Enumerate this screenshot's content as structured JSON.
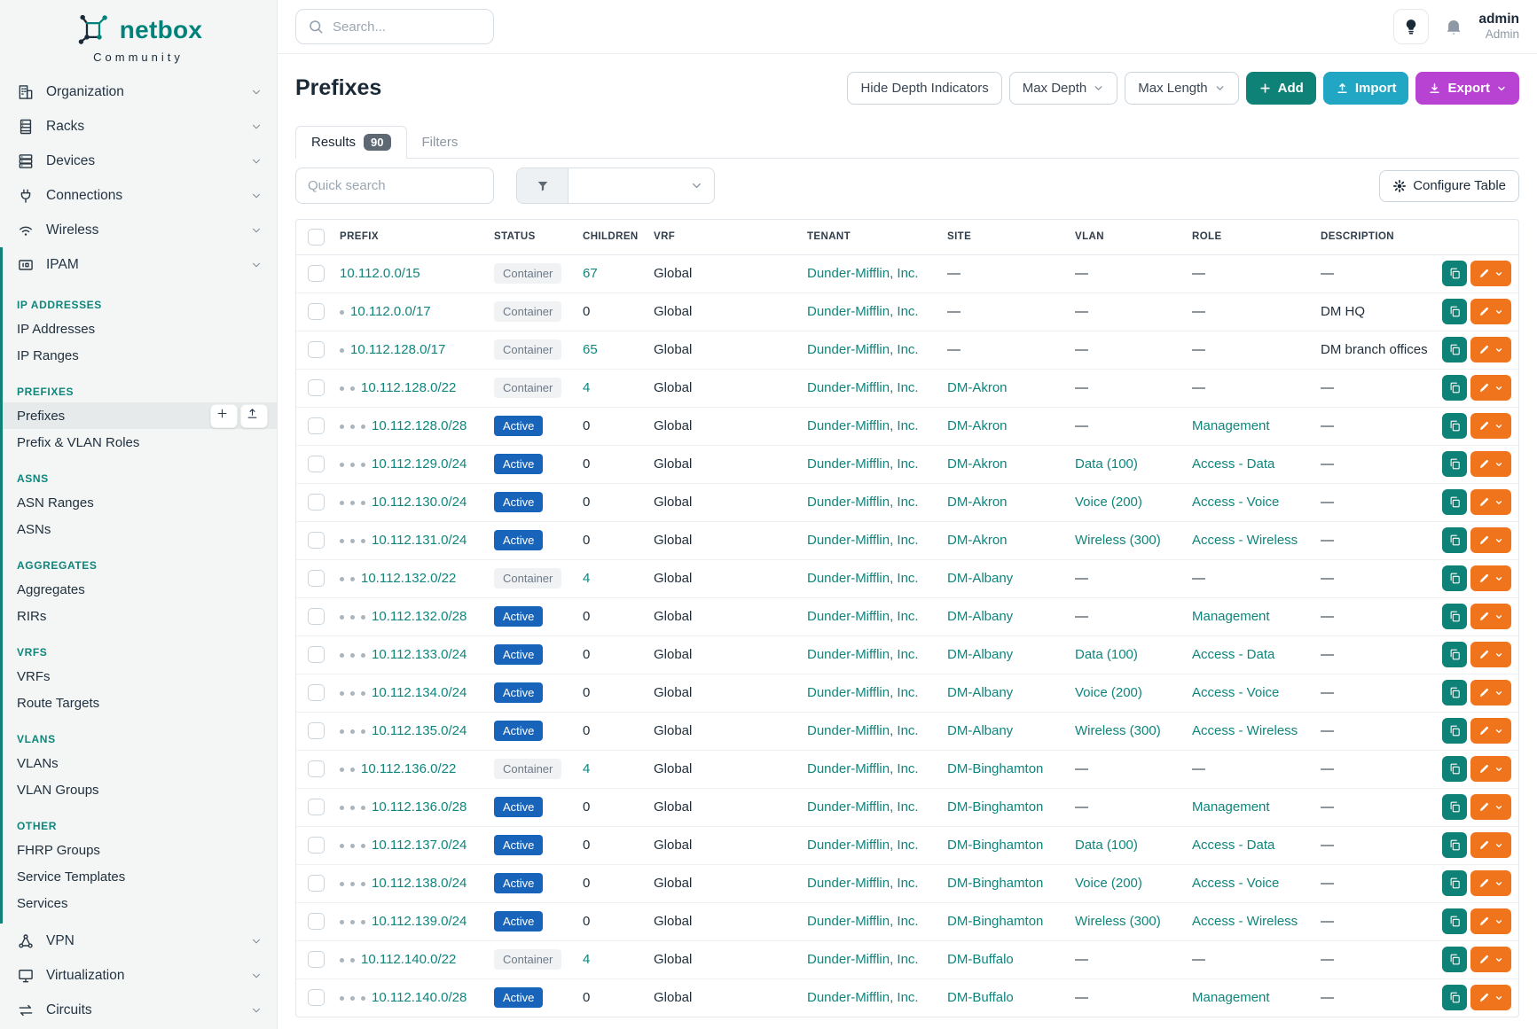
{
  "brand": {
    "name": "netbox",
    "subtitle": "Community"
  },
  "topbar": {
    "search_placeholder": "Search...",
    "user_name": "admin",
    "user_role": "Admin"
  },
  "page": {
    "title": "Prefixes",
    "actions": {
      "hide_depth": "Hide Depth Indicators",
      "max_depth": "Max Depth",
      "max_length": "Max Length",
      "add": "Add",
      "import": "Import",
      "export": "Export"
    },
    "tabs": {
      "results": "Results",
      "results_count": "90",
      "filters": "Filters"
    },
    "quick_search_placeholder": "Quick search",
    "configure_table": "Configure Table"
  },
  "sidebar": {
    "menu_top": [
      {
        "label": "Organization",
        "icon": "organization-icon"
      },
      {
        "label": "Racks",
        "icon": "racks-icon"
      },
      {
        "label": "Devices",
        "icon": "devices-icon"
      },
      {
        "label": "Connections",
        "icon": "connections-icon"
      },
      {
        "label": "Wireless",
        "icon": "wireless-icon"
      }
    ],
    "ipam": {
      "label": "IPAM",
      "icon": "ipam-icon"
    },
    "ipam_sections": [
      {
        "title": "IP ADDRESSES",
        "items": [
          {
            "label": "IP Addresses"
          },
          {
            "label": "IP Ranges"
          }
        ]
      },
      {
        "title": "PREFIXES",
        "items": [
          {
            "label": "Prefixes",
            "active": true,
            "buttons": true
          },
          {
            "label": "Prefix & VLAN Roles"
          }
        ]
      },
      {
        "title": "ASNS",
        "items": [
          {
            "label": "ASN Ranges"
          },
          {
            "label": "ASNs"
          }
        ]
      },
      {
        "title": "AGGREGATES",
        "items": [
          {
            "label": "Aggregates"
          },
          {
            "label": "RIRs"
          }
        ]
      },
      {
        "title": "VRFS",
        "items": [
          {
            "label": "VRFs"
          },
          {
            "label": "Route Targets"
          }
        ]
      },
      {
        "title": "VLANS",
        "items": [
          {
            "label": "VLANs"
          },
          {
            "label": "VLAN Groups"
          }
        ]
      },
      {
        "title": "OTHER",
        "items": [
          {
            "label": "FHRP Groups"
          },
          {
            "label": "Service Templates"
          },
          {
            "label": "Services"
          }
        ]
      }
    ],
    "menu_bottom": [
      {
        "label": "VPN",
        "icon": "vpn-icon"
      },
      {
        "label": "Virtualization",
        "icon": "virtualization-icon"
      },
      {
        "label": "Circuits",
        "icon": "circuits-icon"
      }
    ]
  },
  "table": {
    "columns": [
      "PREFIX",
      "STATUS",
      "CHILDREN",
      "VRF",
      "TENANT",
      "SITE",
      "VLAN",
      "ROLE",
      "DESCRIPTION"
    ],
    "rows": [
      {
        "depth": 0,
        "prefix": "10.112.0.0/15",
        "status": "Container",
        "children": "67",
        "children_link": true,
        "vrf": "Global",
        "tenant": "Dunder-Mifflin, Inc.",
        "site": "—",
        "vlan": "—",
        "role": "—",
        "description": "—"
      },
      {
        "depth": 1,
        "prefix": "10.112.0.0/17",
        "status": "Container",
        "children": "0",
        "children_link": false,
        "vrf": "Global",
        "tenant": "Dunder-Mifflin, Inc.",
        "site": "—",
        "vlan": "—",
        "role": "—",
        "description": "DM HQ"
      },
      {
        "depth": 1,
        "prefix": "10.112.128.0/17",
        "status": "Container",
        "children": "65",
        "children_link": true,
        "vrf": "Global",
        "tenant": "Dunder-Mifflin, Inc.",
        "site": "—",
        "vlan": "—",
        "role": "—",
        "description": "DM branch offices"
      },
      {
        "depth": 2,
        "prefix": "10.112.128.0/22",
        "status": "Container",
        "children": "4",
        "children_link": true,
        "vrf": "Global",
        "tenant": "Dunder-Mifflin, Inc.",
        "site": "DM-Akron",
        "vlan": "—",
        "role": "—",
        "description": "—"
      },
      {
        "depth": 3,
        "prefix": "10.112.128.0/28",
        "status": "Active",
        "children": "0",
        "children_link": false,
        "vrf": "Global",
        "tenant": "Dunder-Mifflin, Inc.",
        "site": "DM-Akron",
        "vlan": "—",
        "role": "Management",
        "description": "—"
      },
      {
        "depth": 3,
        "prefix": "10.112.129.0/24",
        "status": "Active",
        "children": "0",
        "children_link": false,
        "vrf": "Global",
        "tenant": "Dunder-Mifflin, Inc.",
        "site": "DM-Akron",
        "vlan": "Data (100)",
        "role": "Access - Data",
        "description": "—"
      },
      {
        "depth": 3,
        "prefix": "10.112.130.0/24",
        "status": "Active",
        "children": "0",
        "children_link": false,
        "vrf": "Global",
        "tenant": "Dunder-Mifflin, Inc.",
        "site": "DM-Akron",
        "vlan": "Voice (200)",
        "role": "Access - Voice",
        "description": "—"
      },
      {
        "depth": 3,
        "prefix": "10.112.131.0/24",
        "status": "Active",
        "children": "0",
        "children_link": false,
        "vrf": "Global",
        "tenant": "Dunder-Mifflin, Inc.",
        "site": "DM-Akron",
        "vlan": "Wireless (300)",
        "role": "Access - Wireless",
        "description": "—"
      },
      {
        "depth": 2,
        "prefix": "10.112.132.0/22",
        "status": "Container",
        "children": "4",
        "children_link": true,
        "vrf": "Global",
        "tenant": "Dunder-Mifflin, Inc.",
        "site": "DM-Albany",
        "vlan": "—",
        "role": "—",
        "description": "—"
      },
      {
        "depth": 3,
        "prefix": "10.112.132.0/28",
        "status": "Active",
        "children": "0",
        "children_link": false,
        "vrf": "Global",
        "tenant": "Dunder-Mifflin, Inc.",
        "site": "DM-Albany",
        "vlan": "—",
        "role": "Management",
        "description": "—"
      },
      {
        "depth": 3,
        "prefix": "10.112.133.0/24",
        "status": "Active",
        "children": "0",
        "children_link": false,
        "vrf": "Global",
        "tenant": "Dunder-Mifflin, Inc.",
        "site": "DM-Albany",
        "vlan": "Data (100)",
        "role": "Access - Data",
        "description": "—"
      },
      {
        "depth": 3,
        "prefix": "10.112.134.0/24",
        "status": "Active",
        "children": "0",
        "children_link": false,
        "vrf": "Global",
        "tenant": "Dunder-Mifflin, Inc.",
        "site": "DM-Albany",
        "vlan": "Voice (200)",
        "role": "Access - Voice",
        "description": "—"
      },
      {
        "depth": 3,
        "prefix": "10.112.135.0/24",
        "status": "Active",
        "children": "0",
        "children_link": false,
        "vrf": "Global",
        "tenant": "Dunder-Mifflin, Inc.",
        "site": "DM-Albany",
        "vlan": "Wireless (300)",
        "role": "Access - Wireless",
        "description": "—"
      },
      {
        "depth": 2,
        "prefix": "10.112.136.0/22",
        "status": "Container",
        "children": "4",
        "children_link": true,
        "vrf": "Global",
        "tenant": "Dunder-Mifflin, Inc.",
        "site": "DM-Binghamton",
        "vlan": "—",
        "role": "—",
        "description": "—"
      },
      {
        "depth": 3,
        "prefix": "10.112.136.0/28",
        "status": "Active",
        "children": "0",
        "children_link": false,
        "vrf": "Global",
        "tenant": "Dunder-Mifflin, Inc.",
        "site": "DM-Binghamton",
        "vlan": "—",
        "role": "Management",
        "description": "—"
      },
      {
        "depth": 3,
        "prefix": "10.112.137.0/24",
        "status": "Active",
        "children": "0",
        "children_link": false,
        "vrf": "Global",
        "tenant": "Dunder-Mifflin, Inc.",
        "site": "DM-Binghamton",
        "vlan": "Data (100)",
        "role": "Access - Data",
        "description": "—"
      },
      {
        "depth": 3,
        "prefix": "10.112.138.0/24",
        "status": "Active",
        "children": "0",
        "children_link": false,
        "vrf": "Global",
        "tenant": "Dunder-Mifflin, Inc.",
        "site": "DM-Binghamton",
        "vlan": "Voice (200)",
        "role": "Access - Voice",
        "description": "—"
      },
      {
        "depth": 3,
        "prefix": "10.112.139.0/24",
        "status": "Active",
        "children": "0",
        "children_link": false,
        "vrf": "Global",
        "tenant": "Dunder-Mifflin, Inc.",
        "site": "DM-Binghamton",
        "vlan": "Wireless (300)",
        "role": "Access - Wireless",
        "description": "—"
      },
      {
        "depth": 2,
        "prefix": "10.112.140.0/22",
        "status": "Container",
        "children": "4",
        "children_link": true,
        "vrf": "Global",
        "tenant": "Dunder-Mifflin, Inc.",
        "site": "DM-Buffalo",
        "vlan": "—",
        "role": "—",
        "description": "—"
      },
      {
        "depth": 3,
        "prefix": "10.112.140.0/28",
        "status": "Active",
        "children": "0",
        "children_link": false,
        "vrf": "Global",
        "tenant": "Dunder-Mifflin, Inc.",
        "site": "DM-Buffalo",
        "vlan": "—",
        "role": "Management",
        "description": "—"
      }
    ]
  },
  "colors": {
    "brand_teal": "#00827b",
    "link_teal": "#0f857c",
    "status_active_bg": "#1864ba",
    "container_badge_bg": "#f0f2f4",
    "add_button": "#0e8276",
    "import_button": "#21a6c3",
    "export_button": "#b843d2",
    "edit_button": "#f0741c",
    "sidebar_bg": "#f3f6f5"
  }
}
